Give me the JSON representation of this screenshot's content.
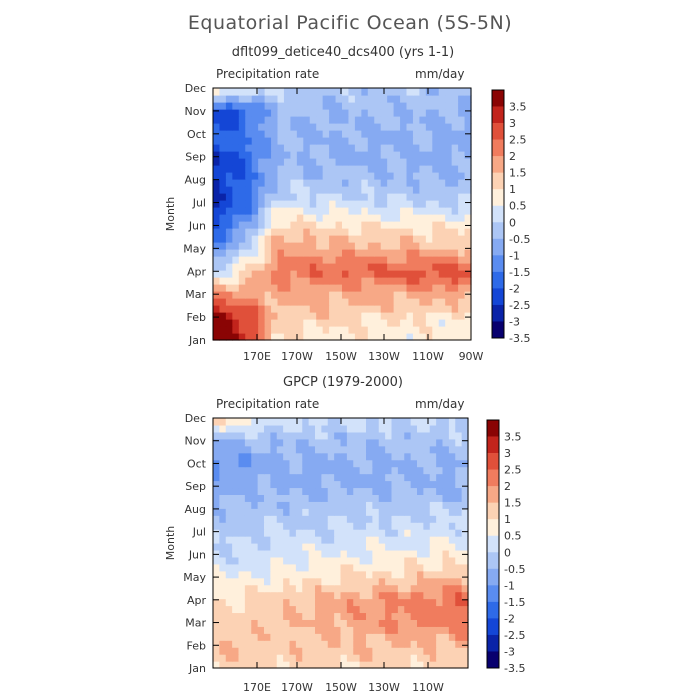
{
  "title": "Equatorial Pacific Ocean (5S-5N)",
  "colors": {
    "scale": [
      "#08006e",
      "#0a23a8",
      "#1446d6",
      "#2e6ae8",
      "#5a8cf0",
      "#86aaf2",
      "#acc6f5",
      "#d2e2fa",
      "#fff0dc",
      "#fcd2b4",
      "#f7a886",
      "#f07c5e",
      "#e0503a",
      "#c2241c",
      "#8a0404"
    ]
  },
  "chart_data": [
    {
      "type": "heatmap",
      "title": "dflt099_detice40_dcs400 (yrs 1-1)",
      "left_label": "Precipitation rate",
      "right_label": "mm/day",
      "ylabel": "Month",
      "x_ticks": [
        "170E",
        "170W",
        "150W",
        "130W",
        "110W",
        "90W"
      ],
      "y_ticks": [
        "Jan",
        "Feb",
        "Mar",
        "Apr",
        "May",
        "Jun",
        "Jul",
        "Aug",
        "Sep",
        "Oct",
        "Nov",
        "Dec"
      ],
      "colorbar_levels": [
        "3.5",
        "3",
        "2.5",
        "2",
        "1.5",
        "1",
        "0.5",
        "0",
        "-0.5",
        "-1",
        "-1.5",
        "-2",
        "-2.5",
        "-3",
        "-3.5"
      ],
      "pattern": {
        "west": [
          3.8,
          3.2,
          1.5,
          -0.2,
          -1.5,
          -2.5,
          -3.0,
          -3.0,
          -3.0,
          -2.5,
          -3.0,
          0.5
        ],
        "mid": [
          0.4,
          0.9,
          1.2,
          1.8,
          1.3,
          0.7,
          -0.3,
          -0.8,
          -1.0,
          -1.0,
          -0.9,
          -0.6
        ],
        "east": [
          0.1,
          0.3,
          1.2,
          2.4,
          1.0,
          0.3,
          -0.5,
          -1.0,
          -1.2,
          -1.1,
          -1.0,
          -0.8
        ]
      }
    },
    {
      "type": "heatmap",
      "title": "GPCP (1979-2000)",
      "left_label": "Precipitation rate",
      "right_label": "mm/day",
      "ylabel": "Month",
      "x_ticks": [
        "170E",
        "170W",
        "150W",
        "130W",
        "110W"
      ],
      "y_ticks": [
        "Jan",
        "Feb",
        "Mar",
        "Apr",
        "May",
        "Jun",
        "Jul",
        "Aug",
        "Sep",
        "Oct",
        "Nov",
        "Dec"
      ],
      "colorbar_levels": [
        "3.5",
        "3",
        "2.5",
        "2",
        "1.5",
        "1",
        "0.5",
        "0",
        "-0.5",
        "-1",
        "-1.5",
        "-2",
        "-2.5",
        "-3",
        "-3.5"
      ],
      "pattern": {
        "west": [
          0.8,
          0.9,
          0.7,
          0.4,
          0.0,
          -0.4,
          -0.6,
          -0.8,
          -1.2,
          -1.5,
          -1.0,
          0.6
        ],
        "mid": [
          0.7,
          0.8,
          0.9,
          0.8,
          0.2,
          -0.2,
          -0.5,
          -0.8,
          -1.1,
          -1.2,
          -0.9,
          -0.3
        ],
        "east": [
          0.5,
          1.0,
          1.8,
          2.0,
          1.0,
          0.3,
          -0.2,
          -0.6,
          -1.1,
          -1.0,
          -0.8,
          -0.4
        ]
      }
    }
  ]
}
